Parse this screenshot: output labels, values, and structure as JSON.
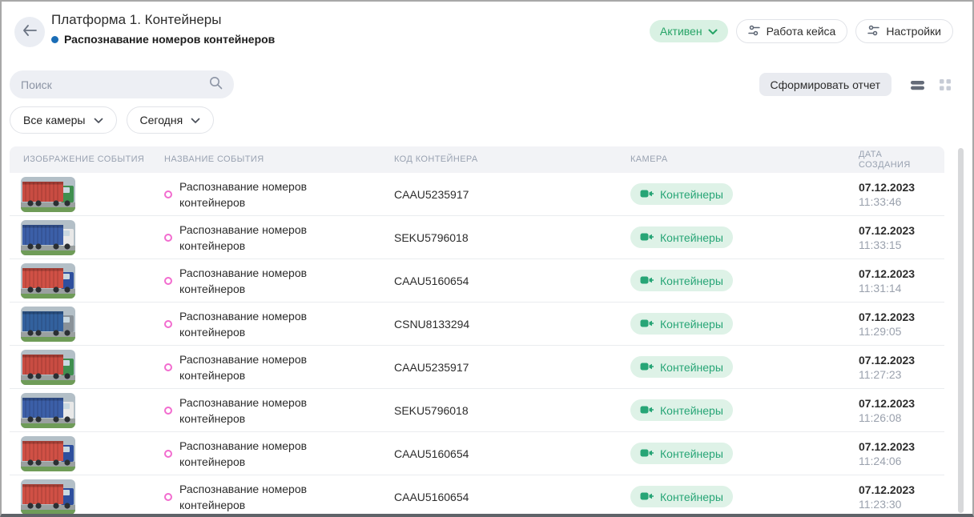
{
  "header": {
    "title": "Платформа 1. Контейнеры",
    "subtitle": "Распознавание номеров контейнеров",
    "status_label": "Активен",
    "case_button_label": "Работа кейса",
    "settings_button_label": "Настройки"
  },
  "toolbar": {
    "search_placeholder": "Поиск",
    "report_button_label": "Сформировать отчет"
  },
  "filters": {
    "cameras_label": "Все камеры",
    "period_label": "Сегодня"
  },
  "icons": {
    "back": "arrow-left",
    "search": "magnifier",
    "status_chevron": "chevron-down",
    "case_settings": "tune-sliders",
    "view_list": "list-rows (active)",
    "view_grid": "grid-dots (inactive)",
    "event_marker": "pink-ring",
    "camera_badge": "video-camera"
  },
  "colors": {
    "accent_green": "#27a467",
    "green_bg": "#d9f1e3",
    "badge_bg": "#def2e7",
    "subtitle_dot_blue": "#1a6db6",
    "event_marker_pink": "#f26ccf",
    "table_header_bg": "#f2f3f6",
    "table_header_text": "#99a2b1"
  },
  "table": {
    "columns": [
      "ИЗОБРАЖЕНИЕ СОБЫТИЯ",
      "НАЗВАНИЕ СОБЫТИЯ",
      "КОД КОНТЕЙНЕРА",
      "КАМЕРА",
      "ДАТА СОЗДАНИЯ"
    ],
    "rows": [
      {
        "event": "Распознавание номеров контейнеров",
        "code": "CAAU5235917",
        "camera": "Контейнеры",
        "date": "07.12.2023",
        "time": "11:33:46",
        "thumb": {
          "container": "#c94c42",
          "cab": "#3f8f4f"
        }
      },
      {
        "event": "Распознавание номеров контейнеров",
        "code": "SEKU5796018",
        "camera": "Контейнеры",
        "date": "07.12.2023",
        "time": "11:33:15",
        "thumb": {
          "container": "#3c5fa8",
          "cab": "#e8e8e8"
        }
      },
      {
        "event": "Распознавание номеров контейнеров",
        "code": "CAAU5160654",
        "camera": "Контейнеры",
        "date": "07.12.2023",
        "time": "11:31:14",
        "thumb": {
          "container": "#d05045",
          "cab": "#2e4f9e"
        }
      },
      {
        "event": "Распознавание номеров контейнеров",
        "code": "CSNU8133294",
        "camera": "Контейнеры",
        "date": "07.12.2023",
        "time": "11:29:05",
        "thumb": {
          "container": "#33619e",
          "cab": "#8a9299"
        }
      },
      {
        "event": "Распознавание номеров контейнеров",
        "code": "CAAU5235917",
        "camera": "Контейнеры",
        "date": "07.12.2023",
        "time": "11:27:23",
        "thumb": {
          "container": "#c94c42",
          "cab": "#3f8f4f"
        }
      },
      {
        "event": "Распознавание номеров контейнеров",
        "code": "SEKU5796018",
        "camera": "Контейнеры",
        "date": "07.12.2023",
        "time": "11:26:08",
        "thumb": {
          "container": "#3c5fa8",
          "cab": "#e8e8e8"
        }
      },
      {
        "event": "Распознавание номеров контейнеров",
        "code": "CAAU5160654",
        "camera": "Контейнеры",
        "date": "07.12.2023",
        "time": "11:24:06",
        "thumb": {
          "container": "#d05045",
          "cab": "#2e4f9e"
        }
      },
      {
        "event": "Распознавание номеров контейнеров",
        "code": "CAAU5160654",
        "camera": "Контейнеры",
        "date": "07.12.2023",
        "time": "11:23:30",
        "thumb": {
          "container": "#d05045",
          "cab": "#2e4f9e"
        }
      }
    ]
  }
}
